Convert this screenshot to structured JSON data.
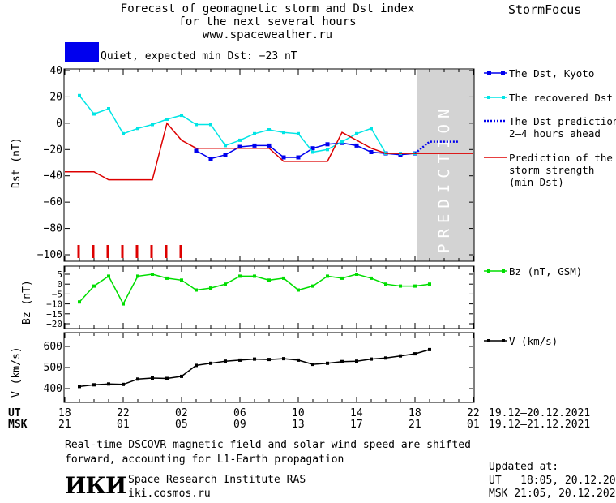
{
  "header": {
    "title_line1": "Forecast of geomagnetic storm and Dst index",
    "title_line2": "for the next several hours",
    "title_line3": "www.spaceweather.ru",
    "brand": "StormFocus",
    "status_text": "Quiet, expected min Dst: −23 nT",
    "status_color": "#0000ee"
  },
  "axis_labels": {
    "dst": "Dst (nT)",
    "bz": "Bz (nT)",
    "v": "V (km/s)",
    "prediction": "PREDICTION"
  },
  "time_axis": {
    "ut_label": "UT",
    "msk_label": "MSK",
    "ut_ticks": [
      "18",
      "22",
      "02",
      "06",
      "10",
      "14",
      "18",
      "22"
    ],
    "msk_ticks": [
      "21",
      "01",
      "05",
      "09",
      "13",
      "17",
      "21",
      "01"
    ],
    "ut_range": "19.12–20.12.2021",
    "msk_range": "19.12–21.12.2021"
  },
  "legend": {
    "dst_kyoto": "The Dst, Kyoto",
    "recovered": "The recovered Dst",
    "prediction_line1": "The Dst prediction",
    "prediction_line2": "2–4 hours ahead",
    "strength_line1": "Prediction of the",
    "strength_line2": "storm strength",
    "strength_line3": "(min Dst)",
    "bz": "Bz (nT, GSM)",
    "v": "V (km/s)"
  },
  "footer": {
    "note_line1": "Real-time DSCOVR magnetic field and solar wind speed are shifted",
    "note_line2": "forward, accounting for L1-Earth propagation",
    "logo_text": "ИКИ",
    "institute": "Space Research Institute RAS",
    "site": "iki.cosmos.ru",
    "updated_label": "Updated at:",
    "updated_ut": "UT   18:05, 20.12.2021",
    "updated_msk": "MSK 21:05, 20.12.2021"
  },
  "colors": {
    "dst_kyoto": "#0000ee",
    "recovered": "#00e5e5",
    "prediction": "#0000ee",
    "strength": "#dd0000",
    "bz": "#00dd00",
    "v": "#000000",
    "prediction_zone": "#d3d3d3"
  },
  "chart_data": [
    {
      "type": "line",
      "panel": "dst",
      "ylabel": "Dst (nT)",
      "ylim": [
        -100,
        40
      ],
      "yticks": [
        40,
        20,
        0,
        -20,
        -40,
        -60,
        -80,
        -100
      ],
      "xlim_hours": [
        0,
        28
      ],
      "prediction_zone_hours": [
        24,
        28
      ],
      "series": [
        {
          "name": "The Dst, Kyoto",
          "x": [
            9,
            10,
            11,
            12,
            13,
            14,
            15,
            16,
            17,
            18,
            19,
            20,
            21,
            22,
            23,
            24
          ],
          "y": [
            -21,
            -27,
            -24,
            -18,
            -17,
            -17,
            -26,
            -26,
            -19,
            -16,
            -15,
            -17,
            -22,
            -23,
            -24,
            -23
          ]
        },
        {
          "name": "The recovered Dst",
          "x": [
            1,
            2,
            3,
            4,
            5,
            6,
            7,
            8,
            9,
            10,
            11,
            12,
            13,
            14,
            15,
            16,
            17,
            18,
            19,
            20,
            21,
            22,
            23,
            24
          ],
          "y": [
            21,
            7,
            11,
            -8,
            -4,
            -1,
            3,
            6,
            -1,
            -1,
            -17,
            -13,
            -8,
            -5,
            -7,
            -8,
            -22,
            -20,
            -14,
            -8,
            -4,
            -23,
            -23,
            -23
          ]
        },
        {
          "name": "The Dst prediction 2–4 hours ahead",
          "x": [
            24,
            25,
            26,
            27
          ],
          "y": [
            -23,
            -14,
            -14,
            -14
          ]
        },
        {
          "name": "Prediction of the storm strength (min Dst)",
          "x": [
            0,
            2,
            3,
            6,
            7,
            8,
            9,
            10,
            11,
            12,
            13,
            14,
            15,
            16,
            17,
            18,
            19,
            20,
            21,
            22,
            23,
            24,
            25,
            28
          ],
          "y": [
            -37,
            -37,
            -43,
            -43,
            0,
            -13,
            -19,
            -19,
            -19,
            -19,
            -19,
            -19,
            -29,
            -29,
            -29,
            -29,
            -7,
            -13,
            -19,
            -23,
            -23,
            -23,
            -23,
            -23
          ]
        }
      ],
      "red_markers_hours": [
        1,
        2,
        3,
        4,
        5,
        6,
        7,
        8
      ]
    },
    {
      "type": "line",
      "panel": "bz",
      "ylabel": "Bz (nT)",
      "ylim": [
        -20,
        5
      ],
      "yticks": [
        5,
        0,
        -5,
        -10,
        -15,
        -20
      ],
      "series": [
        {
          "name": "Bz (nT, GSM)",
          "x": [
            1,
            2,
            3,
            4,
            5,
            6,
            7,
            8,
            9,
            10,
            11,
            12,
            13,
            14,
            15,
            16,
            17,
            18,
            19,
            20,
            21,
            22,
            23,
            24,
            25
          ],
          "y": [
            -9,
            -1,
            4,
            -10,
            4,
            5,
            3,
            2,
            -3,
            -2,
            0,
            4,
            4,
            2,
            3,
            -3,
            -1,
            4,
            3,
            5,
            3,
            0,
            -1,
            -1,
            0
          ]
        }
      ]
    },
    {
      "type": "line",
      "panel": "v",
      "ylabel": "V (km/s)",
      "ylim": [
        350,
        650
      ],
      "yticks": [
        400,
        500,
        600
      ],
      "series": [
        {
          "name": "V (km/s)",
          "x": [
            1,
            2,
            3,
            4,
            5,
            6,
            7,
            8,
            9,
            10,
            11,
            12,
            13,
            14,
            15,
            16,
            17,
            18,
            19,
            20,
            21,
            22,
            23,
            24,
            25
          ],
          "y": [
            410,
            418,
            422,
            420,
            445,
            450,
            448,
            458,
            510,
            520,
            530,
            535,
            540,
            538,
            542,
            535,
            515,
            520,
            528,
            530,
            540,
            545,
            555,
            565,
            585
          ]
        }
      ]
    }
  ]
}
